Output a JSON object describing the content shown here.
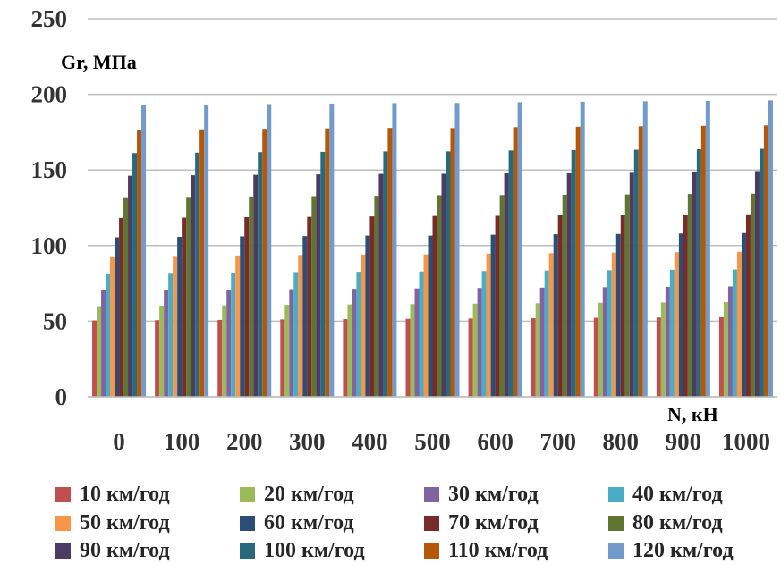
{
  "chart_data": {
    "type": "bar",
    "title": "",
    "ylabel": "Gr, МПа",
    "xlabel": "N, кН",
    "ylim": [
      0,
      250
    ],
    "yticks": [
      "0",
      "50",
      "100",
      "150",
      "200",
      "250"
    ],
    "grid": true,
    "legend_position": "bottom",
    "categories": [
      "0",
      "100",
      "200",
      "300",
      "400",
      "500",
      "600",
      "700",
      "800",
      "900",
      "1000"
    ],
    "series": [
      {
        "name": "10 км/год",
        "color": "#C0504D",
        "values": [
          50.5,
          50.7,
          50.9,
          51.2,
          51.4,
          51.6,
          51.8,
          52.0,
          52.3,
          52.5,
          52.7
        ]
      },
      {
        "name": "20 км/год",
        "color": "#9BBB59",
        "values": [
          60.0,
          60.3,
          60.5,
          60.8,
          61.1,
          61.3,
          61.6,
          61.9,
          62.2,
          62.4,
          62.7
        ]
      },
      {
        "name": "30 км/год",
        "color": "#8064A2",
        "values": [
          70.4,
          70.7,
          70.9,
          71.2,
          71.4,
          71.7,
          72.0,
          72.2,
          72.5,
          72.7,
          73.0
        ]
      },
      {
        "name": "40 км/год",
        "color": "#4BACC6",
        "values": [
          81.7,
          82.0,
          82.2,
          82.5,
          82.7,
          82.9,
          83.2,
          83.5,
          83.7,
          84.0,
          84.2
        ]
      },
      {
        "name": "50 км/год",
        "color": "#F79646",
        "values": [
          92.9,
          93.2,
          93.5,
          93.8,
          94.1,
          94.2,
          94.7,
          95.0,
          95.3,
          95.6,
          95.9
        ]
      },
      {
        "name": "60 км/год",
        "color": "#2C4D75",
        "values": [
          105.5,
          105.8,
          106.1,
          106.3,
          106.6,
          106.6,
          107.2,
          107.5,
          107.7,
          108.0,
          108.3
        ]
      },
      {
        "name": "70 км/год",
        "color": "#772C2A",
        "values": [
          118.3,
          118.5,
          118.8,
          119.0,
          119.3,
          119.6,
          119.7,
          120.0,
          120.2,
          120.5,
          120.7
        ]
      },
      {
        "name": "80 км/год",
        "color": "#5F7530",
        "values": [
          132.0,
          132.2,
          132.5,
          132.7,
          132.9,
          133.3,
          133.4,
          133.6,
          133.8,
          134.1,
          134.3
        ]
      },
      {
        "name": "90 км/год",
        "color": "#4D3B62",
        "values": [
          146.2,
          146.5,
          146.8,
          147.1,
          147.4,
          147.5,
          148.1,
          148.4,
          148.7,
          149.0,
          149.3
        ]
      },
      {
        "name": "100 км/год",
        "color": "#276A7C",
        "values": [
          161.2,
          161.5,
          161.8,
          162.0,
          162.3,
          162.3,
          162.9,
          163.2,
          163.4,
          163.7,
          164.0
        ]
      },
      {
        "name": "110 км/год",
        "color": "#B65708",
        "values": [
          176.6,
          176.9,
          177.2,
          177.5,
          177.8,
          177.7,
          178.3,
          178.6,
          178.9,
          179.2,
          179.5
        ]
      },
      {
        "name": "120 км/год",
        "color": "#729ACA",
        "values": [
          193.0,
          193.3,
          193.6,
          193.9,
          194.2,
          194.3,
          194.8,
          195.1,
          195.4,
          195.7,
          196.0
        ]
      }
    ]
  }
}
